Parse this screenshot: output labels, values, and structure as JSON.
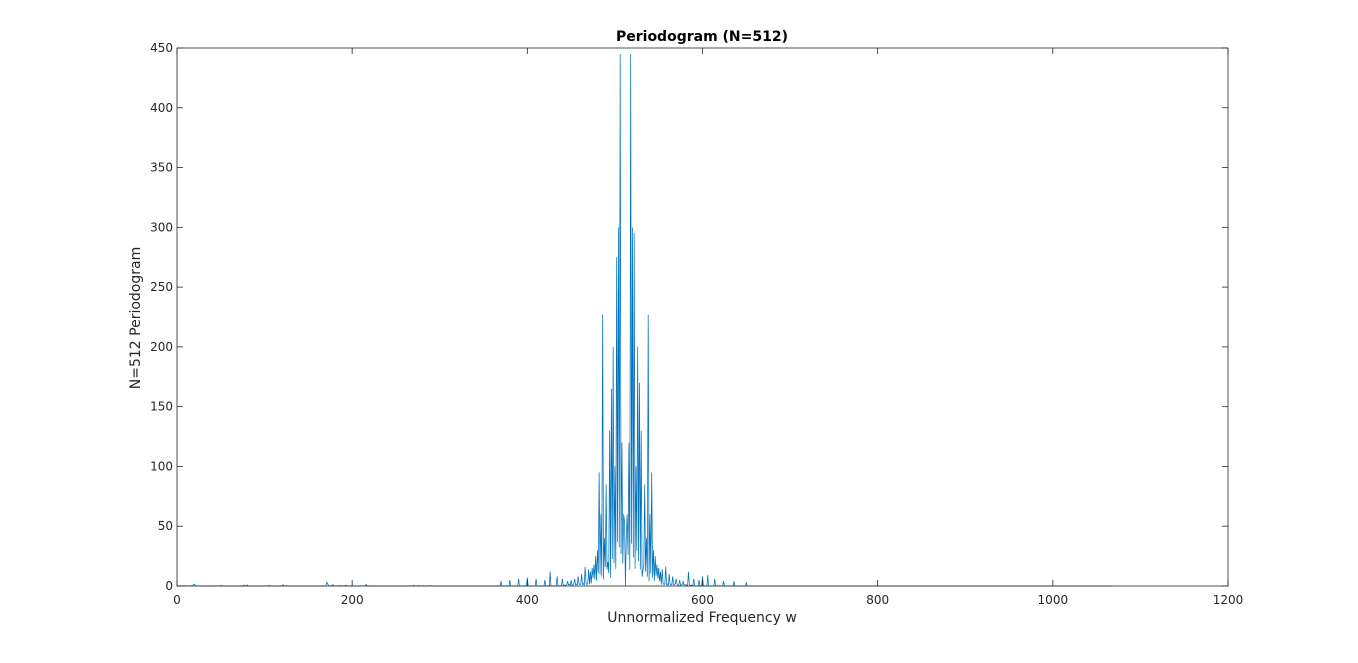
{
  "chart_data": {
    "type": "line",
    "title": "Periodogram (N=512)",
    "xlabel": "Unnormalized Frequency w",
    "ylabel": "N=512 Periodogram",
    "xlim": [
      0,
      1200
    ],
    "ylim": [
      0,
      450
    ],
    "xticks": [
      0,
      200,
      400,
      600,
      800,
      1000,
      1200
    ],
    "yticks": [
      0,
      50,
      100,
      150,
      200,
      250,
      300,
      350,
      400,
      450
    ],
    "grid": false,
    "line_color": "#0072BD",
    "series": [
      {
        "x_start": 1,
        "x_step": 1,
        "values": [
          0.3,
          0.1,
          0.0,
          0.2,
          0.1,
          0.0,
          0.1,
          0.3,
          0.0,
          0.1,
          0.2,
          0.0,
          0.1,
          0.0,
          0.2,
          0.1,
          0.3,
          0.0,
          1.4,
          1.5,
          0.2,
          0.1,
          0.0,
          0.1,
          0.2,
          0.0,
          0.1,
          0.0,
          0.2,
          0.1,
          0.0,
          0.1,
          0.2,
          0.0,
          0.1,
          0.0,
          0.3,
          0.1,
          0.0,
          0.1,
          0.0,
          0.2,
          0.1,
          0.0,
          0.1,
          0.0,
          0.2,
          0.1,
          0.0,
          0.6,
          0.1,
          0.0,
          0.1,
          0.2,
          0.0,
          0.1,
          0.0,
          0.2,
          0.1,
          0.0,
          0.1,
          0.0,
          0.2,
          0.1,
          0.0,
          0.1,
          0.0,
          0.2,
          0.1,
          0.0,
          0.1,
          0.0,
          0.2,
          0.1,
          0.0,
          0.5,
          0.7,
          0.1,
          0.0,
          0.9,
          0.2,
          0.1,
          0.0,
          0.1,
          0.2,
          0.0,
          0.1,
          0.0,
          0.2,
          0.1,
          0.0,
          0.1,
          0.2,
          0.0,
          0.1,
          0.0,
          0.2,
          0.1,
          0.0,
          0.1,
          0.0,
          0.2,
          0.1,
          0.0,
          0.6,
          0.1,
          0.0,
          0.1,
          0.2,
          0.0,
          0.1,
          0.0,
          0.2,
          0.1,
          0.0,
          0.1,
          0.0,
          0.2,
          0.1,
          0.0,
          1.0,
          0.1,
          0.2,
          0.0,
          0.1,
          0.0,
          0.2,
          0.1,
          0.0,
          0.1,
          0.0,
          0.2,
          0.1,
          0.0,
          0.1,
          0.0,
          0.2,
          0.1,
          0.0,
          0.1,
          0.0,
          0.2,
          0.1,
          0.0,
          0.1,
          0.0,
          0.2,
          0.1,
          0.0,
          0.1,
          0.0,
          0.2,
          0.1,
          0.0,
          0.1,
          0.0,
          0.2,
          0.1,
          0.0,
          0.1,
          0.0,
          0.2,
          0.1,
          0.0,
          0.1,
          0.0,
          0.2,
          0.1,
          0.0,
          0.1,
          3.0,
          2.1,
          0.1,
          0.0,
          0.1,
          0.3,
          0.0,
          1.2,
          0.1,
          0.0,
          0.2,
          0.1,
          0.0,
          0.4,
          0.0,
          0.1,
          0.6,
          0.1,
          0.0,
          0.1,
          0.2,
          0.0,
          0.8,
          0.0,
          0.1,
          0.0,
          0.2,
          0.1,
          0.0,
          0.1,
          0.0,
          0.2,
          0.1,
          0.0,
          0.1,
          0.0,
          0.2,
          0.1,
          0.0,
          0.1,
          0.0,
          0.2,
          0.1,
          0.0,
          0.1,
          1.3,
          0.2,
          0.0,
          0.1,
          0.0,
          0.3,
          0.1,
          0.0,
          0.1,
          0.0,
          0.2,
          0.1,
          0.0,
          0.1,
          0.0,
          0.2,
          0.1,
          0.0,
          0.1,
          0.0,
          0.2,
          0.1,
          0.0,
          0.1,
          0.0,
          0.2,
          0.1,
          0.0,
          0.1,
          0.0,
          0.2,
          0.1,
          0.0,
          0.1,
          0.0,
          0.2,
          0.1,
          0.0,
          0.1,
          0.0,
          0.2,
          0.1,
          0.0,
          0.1,
          0.0,
          0.2,
          0.1,
          0.0,
          0.1,
          0.0,
          0.2,
          0.1,
          0.0,
          0.1,
          0.7,
          0.2,
          0.1,
          0.0,
          0.1,
          0.0,
          0.4,
          0.1,
          0.0,
          0.1,
          0.0,
          0.2,
          0.1,
          0.0,
          0.1,
          0.0,
          0.2,
          0.1,
          0.0,
          0.5,
          0.0,
          0.2,
          0.1,
          0.0,
          0.1,
          0.0,
          0.2,
          0.1,
          0.0,
          0.1,
          0.0,
          0.2,
          0.1,
          0.0,
          0.1,
          0.0,
          0.2,
          0.1,
          0.0,
          0.1,
          0.0,
          0.2,
          0.1,
          0.0,
          0.1,
          0.0,
          0.2,
          0.1,
          0.0,
          0.1,
          0.0,
          0.2,
          0.1,
          0.0,
          0.1,
          0.0,
          0.2,
          0.1,
          0.0,
          0.1,
          0.0,
          0.2,
          0.1,
          0.0,
          0.1,
          0.0,
          0.2,
          0.1,
          0.0,
          0.1,
          0.0,
          0.2,
          0.1,
          0.0,
          0.1,
          0.0,
          0.2,
          0.1,
          0.0,
          0.1,
          0.0,
          0.2,
          0.1,
          0.0,
          0.1,
          0.0,
          0.2,
          0.1,
          0.0,
          0.1,
          0.0,
          0.2,
          0.1,
          0.0,
          0.1,
          0.0,
          0.2,
          0.1,
          0.0,
          0.1,
          0.0,
          0.2,
          0.1,
          0.0,
          0.1,
          0.0,
          0.2,
          0.1,
          0.0,
          0.1,
          0.0,
          0.2,
          0.1,
          0.0,
          0.1,
          0.0,
          0.2,
          0.1,
          0.0,
          0.1,
          0.0,
          0.2,
          0.1,
          0.0,
          0.1,
          0.0,
          0.2,
          0.1,
          0.0,
          0.1,
          0.0,
          0.2,
          0.1,
          0.0,
          0.1,
          0.0,
          0.2,
          0.1,
          0.0,
          0.1,
          0.0,
          0.2,
          0.1,
          0.0,
          0.1,
          0.0,
          0.2,
          0.1,
          0.0,
          0.1,
          0.0,
          0.2,
          0.1,
          0.0,
          0.1,
          0.0,
          0.2,
          0.1,
          0.0,
          0.1,
          0.0,
          0.2,
          0.1,
          0.0,
          0.1,
          0.0,
          0.2,
          0.1,
          0.0,
          0.1,
          0.0,
          0.2,
          0.1,
          0.0,
          0.1,
          0.0,
          0.2,
          0.1,
          0.0,
          0.1,
          0.0,
          0.2,
          0.1,
          0.0,
          0.1,
          0.0,
          0.2,
          0.1,
          0.0,
          0.1,
          0.0,
          0.2,
          0.1,
          0.0,
          0.1,
          0.0,
          0.2,
          0.1,
          0.0,
          0.1,
          0.0,
          0.2,
          0.1,
          0.0,
          0.1,
          0.0,
          0.2,
          0.1,
          0.0,
          0.1,
          0.0,
          0.2,
          0.1,
          0.0,
          0.1,
          0.0,
          0.2,
          0.1,
          0.0,
          0.1,
          0.0,
          0.2,
          0.1,
          0.0,
          0.1,
          0.0,
          0.2,
          0.1,
          0.0,
          0.1,
          0.0,
          0.2,
          0.1,
          0.0,
          0.1,
          0.0,
          0.2,
          0.1,
          0.0,
          0.1,
          0.0,
          0.2,
          0.1,
          0.0,
          0.1,
          0.0,
          0.2,
          0.1,
          0.0,
          0.1,
          0.0,
          0.2,
          0.1,
          0.0,
          0.1,
          0.0,
          0.2,
          0.1,
          0.0,
          0.1,
          0.0,
          0.2,
          0.1,
          0.0,
          0.1,
          0.0,
          0.2,
          0.1,
          0.0,
          0.1,
          0.0,
          0.2,
          0.1,
          0.0,
          0.1,
          0.0,
          0.2,
          0.1,
          0.0,
          0.1,
          0.0,
          0.2,
          0.1,
          0.0,
          0.1,
          0.0,
          0.2,
          0.1,
          0.0,
          0.1,
          0.0,
          0.2,
          0.1,
          0.0,
          0.1,
          0.0,
          0.2,
          0.1,
          0.0,
          0.1,
          0.0,
          0.2,
          0.1,
          0.0,
          0.1,
          0.0,
          0.2,
          0.1,
          0.0,
          0.1,
          0.0,
          0.2,
          0.1,
          0.0,
          0.1,
          0.0,
          0.2,
          0.1,
          0.0,
          0.1,
          0.0,
          0.2,
          0.1,
          0.0,
          0.1,
          0.0,
          0.2,
          0.1,
          0.0,
          0.1,
          0.0,
          0.2,
          0.1,
          0.0,
          0.1,
          0.0,
          0.2,
          0.1,
          0.0,
          0.1,
          0.0,
          0.2,
          0.1,
          0.0,
          0.1,
          0.0,
          0.2,
          0.1,
          0.0,
          0.1,
          0.0,
          0.2,
          0.1,
          0.0,
          0.1,
          0.0,
          0.2,
          0.1,
          0.0,
          0.1,
          0.0,
          0.2,
          0.1,
          0.0,
          0.1,
          0.0,
          0.2,
          0.1,
          0.0,
          0.1,
          0.0,
          0.2,
          0.1,
          0.0,
          0.1,
          0.0,
          0.2,
          0.1,
          0.0,
          0.1,
          0.0,
          0.2,
          0.1,
          0.0,
          0.1,
          0.0,
          0.2,
          0.1,
          0.0,
          0.1,
          0.0,
          0.2,
          0.1,
          0.0,
          0.1,
          0.0,
          0.2,
          0.1,
          0.0,
          0.1,
          0.0,
          0.2,
          0.1,
          0.0,
          0.1,
          0.0,
          0.2,
          0.1,
          0.0,
          0.1,
          0.0,
          0.2,
          0.1,
          0.0,
          0.1,
          0.0,
          0.2,
          0.1,
          0.0,
          0.1,
          0.0,
          0.2,
          0.1,
          0.0,
          0.1,
          0.0,
          0.2,
          0.1,
          0.0,
          0.1,
          0.0,
          0.2,
          0.1,
          0.0,
          0.1,
          0.0,
          0.2,
          0.1,
          0.0,
          0.1,
          0.0,
          0.2,
          0.1,
          0.0,
          0.1,
          0.0,
          0.2,
          0.1,
          0.0,
          0.1,
          0.0,
          0.2,
          0.1,
          0.0,
          0.1,
          0.0,
          0.2,
          0.1,
          0.0,
          0.1,
          0.0,
          0.2,
          0.1,
          0.0,
          0.1,
          0.0,
          0.2,
          0.1,
          0.0,
          0.1,
          0.0,
          0.2,
          0.1,
          0.0,
          0.1,
          0.0,
          0.2,
          0.1,
          0.0,
          0.1,
          0.0,
          0.2,
          0.1,
          0.0,
          0.1,
          0.0,
          0.2,
          0.1,
          0.0,
          0.1,
          0.0,
          0.2,
          0.1,
          0.0,
          0.1,
          0.0,
          0.2,
          0.1,
          0.0,
          0.1,
          0.0,
          0.2,
          0.1,
          0.0,
          0.1,
          0.0,
          0.2,
          0.1,
          0.0,
          0.1,
          0.0,
          0.2,
          0.1,
          0.0,
          0.1,
          0.0,
          0.2,
          0.1,
          0.0,
          0.1,
          0.0,
          0.2,
          0.1,
          0.0,
          0.1,
          0.0,
          0.2,
          0.1,
          0.0,
          0.1,
          0.0,
          0.2,
          0.1,
          0.0,
          0.1,
          0.0,
          0.2,
          0.1,
          0.0,
          0.1,
          0.0,
          0.2,
          0.1,
          0.0,
          0.1,
          0.0,
          0.2,
          0.1,
          0.0,
          0.1,
          0.0,
          0.2,
          0.1,
          0.0,
          0.1,
          0.0,
          0.2,
          0.1,
          0.0,
          0.1,
          0.0,
          0.2,
          0.1,
          0.0,
          0.1,
          0.0,
          0.2,
          0.1,
          0.0,
          0.1,
          0.0,
          0.2,
          0.1,
          0.0,
          0.1,
          0.0,
          0.2,
          0.1,
          0.0,
          0.1,
          0.0,
          0.2,
          0.1,
          0.0,
          0.1,
          0.0,
          0.2,
          0.1,
          0.0,
          0.1,
          0.0,
          0.2,
          0.1,
          0.0,
          0.1,
          0.0,
          0.2,
          0.1,
          0.0,
          0.1,
          0.0,
          0.2,
          0.1,
          0.0,
          0.1,
          0.0,
          0.2,
          0.1,
          0.0,
          0.1,
          0.0,
          0.2,
          0.1,
          0.0,
          0.1,
          0.0,
          0.2,
          0.1,
          0.0,
          0.1,
          0.0,
          0.2,
          0.1,
          0.0,
          0.1,
          0.0,
          0.2,
          0.1,
          0.0,
          0.1,
          0.0,
          0.2,
          0.1,
          0.0,
          0.1,
          0.0,
          0.2,
          0.1,
          0.0,
          0.1,
          0.0,
          0.2,
          0.1,
          0.0,
          0.1,
          0.0,
          0.2,
          0.1,
          0.0,
          0.1,
          0.0,
          0.2,
          0.1,
          0.0,
          0.1,
          0.0,
          0.2,
          0.1,
          0.0,
          0.1,
          0.0,
          0.2,
          0.1,
          0.0,
          0.1,
          0.0,
          0.2,
          0.1,
          0.0,
          0.1,
          0.0,
          0.2,
          0.1,
          0.0,
          0.1,
          0.0,
          0.2,
          0.1,
          0.0,
          0.1,
          0.0,
          0.2,
          0.1,
          0.0,
          0.1,
          0.0,
          0.2,
          0.1,
          0.0,
          0.1,
          0.0,
          0.2,
          0.1,
          0.0,
          0.1,
          0.0,
          0.2,
          0.1,
          0.0,
          0.1,
          0.0,
          0.2,
          0.1,
          0.0,
          0.1,
          0.0,
          0.2,
          0.1,
          0.0,
          0.1,
          0.0,
          0.2,
          0.1,
          0.0,
          0.1,
          0.0,
          0.2,
          0.1,
          0.0,
          0.1,
          0.0,
          0.2,
          0.1,
          0.0,
          0.1,
          0.0,
          0.2,
          0.1,
          0.0,
          0.1,
          0.0,
          0.2,
          0.1,
          0.0,
          0.1,
          0.0,
          0.2,
          0.1,
          0.0,
          0.1,
          0.0,
          0.2,
          0.1,
          0.0,
          0.1,
          0.0,
          0.2,
          0.1,
          0.0,
          0.1,
          0.0,
          0.2,
          0.1,
          0.0,
          0.1,
          0.0,
          0.2,
          0.1,
          0.0,
          0.1,
          0.0,
          0.2,
          0.1,
          0.0,
          0.1,
          0.0,
          0.2,
          0.1,
          0.0,
          0.1,
          0.0,
          0.2,
          0.1,
          0.0,
          0.1,
          0.0,
          0.2,
          0.1,
          0.0,
          0.1,
          0.0,
          0.2,
          0.1,
          0.0,
          0.1,
          0.0,
          0.2,
          0.1,
          0.0,
          0.1,
          0.0,
          0.2,
          0.1,
          0.0,
          0.1,
          0.0,
          0.2,
          0.1,
          0.0
        ]
      }
    ]
  }
}
